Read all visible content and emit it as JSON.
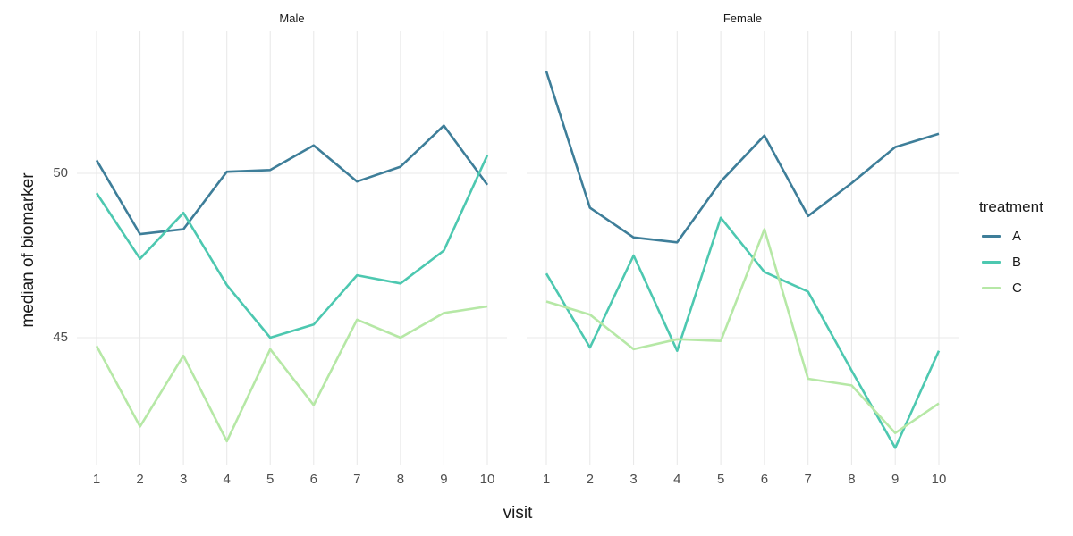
{
  "figure": {
    "x_axis": {
      "title": "visit",
      "tick_labels": [
        "1",
        "2",
        "3",
        "4",
        "5",
        "6",
        "7",
        "8",
        "9",
        "10"
      ]
    },
    "y_axis": {
      "title": "median of biomarker",
      "tick_labels": [
        "50",
        "45"
      ],
      "tick_values": [
        50,
        45
      ]
    },
    "legend": {
      "title": "treatment"
    },
    "colors": {
      "grid": "#e9e9e9",
      "tick_text": "#4d4d4d",
      "title_text": "#1a1a1a",
      "background": "#ffffff"
    }
  },
  "chart_data": {
    "type": "line",
    "title": "",
    "xlabel": "visit",
    "ylabel": "median of biomarker",
    "x": [
      1,
      2,
      3,
      4,
      5,
      6,
      7,
      8,
      9,
      10
    ],
    "y_tick_values": [
      45,
      50
    ],
    "ylim": [
      41.1,
      54.3
    ],
    "grid": "major gridlines only, light gray on white panel",
    "legend_title": "treatment",
    "legend_position": "right",
    "facets": [
      {
        "label": "Male",
        "series": [
          {
            "name": "A",
            "color": "#3e7e99",
            "values": [
              50.4,
              48.15,
              48.3,
              50.05,
              50.1,
              50.85,
              49.75,
              50.2,
              51.45,
              49.65
            ]
          },
          {
            "name": "B",
            "color": "#4dc8b0",
            "values": [
              49.4,
              47.4,
              48.8,
              46.6,
              45.0,
              45.4,
              46.9,
              46.65,
              47.65,
              50.55
            ]
          },
          {
            "name": "C",
            "color": "#b6e8a6",
            "values": [
              44.75,
              42.3,
              44.45,
              41.85,
              44.65,
              42.95,
              45.55,
              45.0,
              45.75,
              45.95
            ]
          }
        ]
      },
      {
        "label": "Female",
        "series": [
          {
            "name": "A",
            "color": "#3e7e99",
            "values": [
              53.1,
              48.95,
              48.05,
              47.9,
              49.75,
              51.15,
              48.7,
              49.7,
              50.8,
              51.2
            ]
          },
          {
            "name": "B",
            "color": "#4dc8b0",
            "values": [
              46.95,
              44.7,
              47.5,
              44.6,
              48.65,
              47.0,
              46.4,
              44.0,
              41.65,
              44.6
            ]
          },
          {
            "name": "C",
            "color": "#b6e8a6",
            "values": [
              46.1,
              45.7,
              44.65,
              44.95,
              44.9,
              48.3,
              43.75,
              43.55,
              42.1,
              43.0
            ]
          }
        ]
      }
    ]
  }
}
